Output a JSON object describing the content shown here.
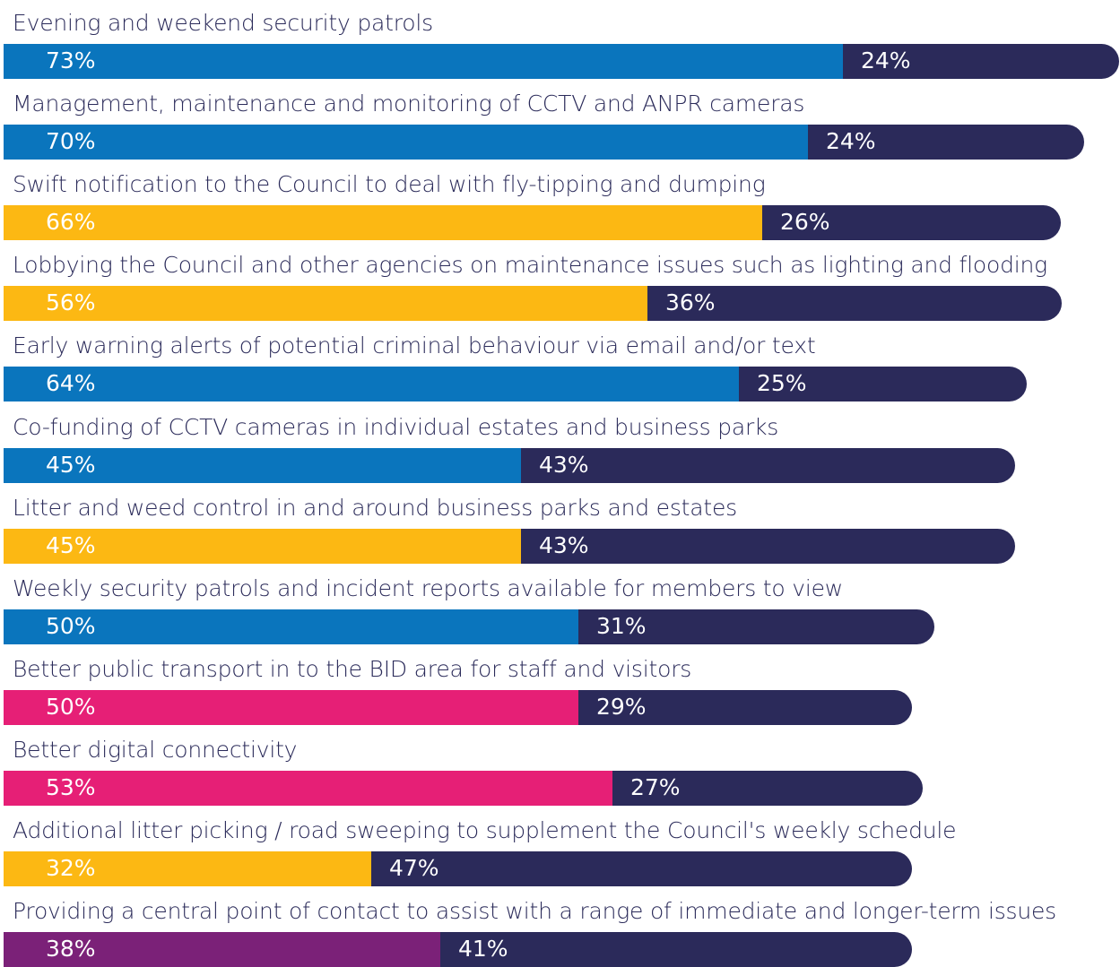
{
  "chart_data": {
    "type": "bar",
    "orientation": "horizontal",
    "stacked": true,
    "categories": [
      "Evening and weekend security patrols",
      "Management, maintenance and monitoring of CCTV and ANPR cameras",
      "Swift notification to the Council to deal with fly-tipping and dumping",
      "Lobbying the Council and other agencies on maintenance issues such as lighting and flooding",
      "Early warning alerts of potential criminal behaviour via email and/or text",
      "Co-funding of CCTV cameras in individual estates and business parks",
      "Litter and weed control in and around business parks and estates",
      "Weekly security patrols and incident reports available for members to view",
      "Better public transport in to the BID area for staff and visitors",
      "Better digital connectivity",
      "Additional litter picking / road sweeping to supplement the Council's weekly schedule",
      "Providing a central point of contact to assist with a range of immediate and longer-term issues"
    ],
    "series": [
      {
        "values": [
          73,
          70,
          66,
          56,
          64,
          45,
          45,
          50,
          50,
          53,
          32,
          38
        ],
        "labels": [
          "73%",
          "70%",
          "66%",
          "56%",
          "64%",
          "45%",
          "45%",
          "50%",
          "50%",
          "53%",
          "32%",
          "38%"
        ],
        "colors": [
          "#0a75bd",
          "#0a75bd",
          "#fcb813",
          "#fcb813",
          "#0a75bd",
          "#0a75bd",
          "#fcb813",
          "#0a75bd",
          "#e61f76",
          "#e61f76",
          "#fcb813",
          "#7b2178"
        ]
      },
      {
        "values": [
          24,
          24,
          26,
          36,
          25,
          43,
          43,
          31,
          29,
          27,
          47,
          41
        ],
        "labels": [
          "24%",
          "24%",
          "26%",
          "36%",
          "25%",
          "43%",
          "43%",
          "31%",
          "29%",
          "27%",
          "47%",
          "41%"
        ],
        "color": "#2b2a5a"
      }
    ],
    "xlim": [
      0,
      100
    ],
    "grid": false,
    "legend": "none"
  }
}
